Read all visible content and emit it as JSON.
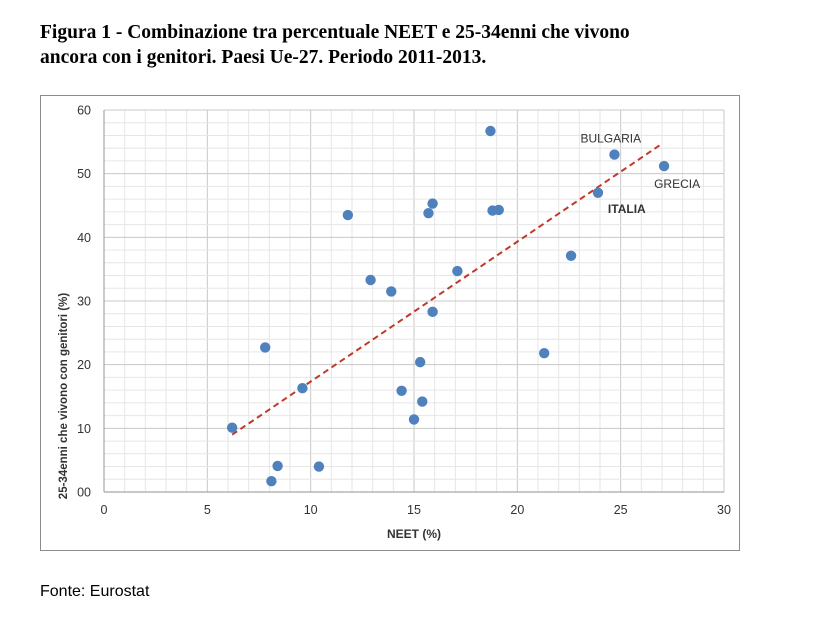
{
  "figure": {
    "title_line1": "Figura 1 - Combinazione tra percentuale NEET e 25-34enni che vivono",
    "title_line2": "ancora con i genitori. Paesi Ue-27. Periodo 2011-2013.",
    "source": "Fonte: Eurostat"
  },
  "colors": {
    "point": "#4f81bd",
    "trendline": "#c0392b",
    "grid": "#d9d9d9",
    "axis": "#a6a6a6"
  },
  "chart_data": {
    "type": "scatter",
    "title": "Combinazione tra percentuale NEET e 25-34enni che vivono ancora con i genitori",
    "xlabel": "NEET (%)",
    "ylabel": "25-34enni che vivono con genitori (%)",
    "xlim": [
      0,
      30
    ],
    "ylim": [
      0,
      60
    ],
    "x_ticks": [
      "0",
      "5",
      "10",
      "15",
      "20",
      "25",
      "30"
    ],
    "y_ticks": [
      "00",
      "10",
      "20",
      "30",
      "40",
      "50",
      "60"
    ],
    "grid": true,
    "points": [
      {
        "x": 6.2,
        "y": 10.1
      },
      {
        "x": 7.8,
        "y": 22.7
      },
      {
        "x": 8.1,
        "y": 1.7
      },
      {
        "x": 8.4,
        "y": 4.1
      },
      {
        "x": 9.6,
        "y": 16.3
      },
      {
        "x": 10.4,
        "y": 4.0
      },
      {
        "x": 11.8,
        "y": 43.5
      },
      {
        "x": 12.9,
        "y": 33.3
      },
      {
        "x": 13.9,
        "y": 31.5
      },
      {
        "x": 14.4,
        "y": 15.9
      },
      {
        "x": 15.0,
        "y": 11.4
      },
      {
        "x": 15.3,
        "y": 20.4
      },
      {
        "x": 15.4,
        "y": 14.2
      },
      {
        "x": 15.7,
        "y": 43.8
      },
      {
        "x": 15.9,
        "y": 45.3
      },
      {
        "x": 15.9,
        "y": 28.3
      },
      {
        "x": 17.1,
        "y": 34.7
      },
      {
        "x": 18.7,
        "y": 56.7
      },
      {
        "x": 18.8,
        "y": 44.2
      },
      {
        "x": 19.1,
        "y": 44.3
      },
      {
        "x": 21.3,
        "y": 21.8
      },
      {
        "x": 22.6,
        "y": 37.1
      },
      {
        "x": 23.9,
        "y": 47.0,
        "label": "ITALIA",
        "bold": true
      },
      {
        "x": 24.7,
        "y": 53.0,
        "label": "BULGARIA"
      },
      {
        "x": 27.1,
        "y": 51.2,
        "label": "GRECIA"
      }
    ],
    "trendline": {
      "x_start": 6.2,
      "y_start": 9.0,
      "x_end": 27.0,
      "y_end": 54.7
    }
  }
}
